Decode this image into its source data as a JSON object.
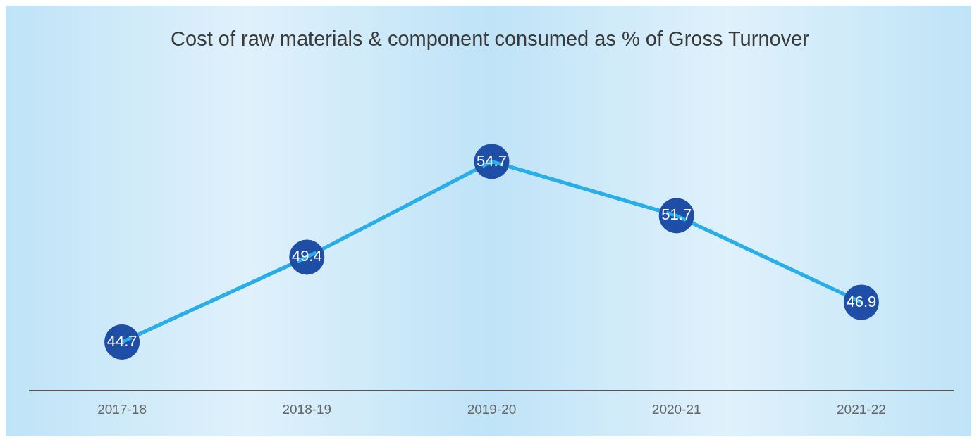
{
  "chart_data": {
    "type": "line",
    "title": "Cost of raw materials & component consumed as % of Gross Turnover",
    "categories": [
      "2017-18",
      "2018-19",
      "2019-20",
      "2020-21",
      "2021-22"
    ],
    "series": [
      {
        "color": "#29aee8",
        "values": [
          44.7,
          49.4,
          54.7,
          51.7,
          46.9
        ]
      }
    ],
    "tick_labels": "x",
    "data_labels": true,
    "marker": "circle",
    "line_style": "solid",
    "grid": false,
    "legend": false
  }
}
